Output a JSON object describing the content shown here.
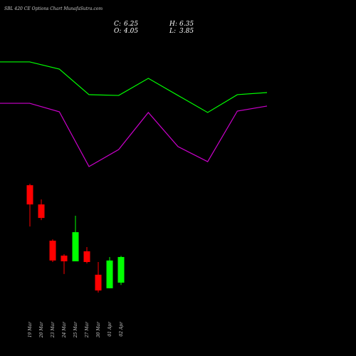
{
  "chart_data": {
    "type": "candlestick",
    "title": "SBL 420 CE Options Chart MunafaSutra.com",
    "summary": [
      {
        "label": "C:",
        "value": 6.25
      },
      {
        "label": "H:",
        "value": 6.35
      },
      {
        "label": "O:",
        "value": 4.05
      },
      {
        "label": "L:",
        "value": 3.85
      }
    ],
    "categories": [
      "19 Mar",
      "20 Mar",
      "23 Mar",
      "24 Mar",
      "25 Mar",
      "27 Mar",
      "30 Mar",
      "01 Apr",
      "02 Apr"
    ],
    "open": [
      12.41,
      10.76,
      7.65,
      6.37,
      5.88,
      6.74,
      4.73,
      3.57,
      4.05
    ],
    "high": [
      12.53,
      11.19,
      7.77,
      6.49,
      9.79,
      7.1,
      5.82,
      6.25,
      6.35
    ],
    "low": [
      8.87,
      9.42,
      5.82,
      4.79,
      5.88,
      5.7,
      3.2,
      3.57,
      3.85
    ],
    "close": [
      10.76,
      9.6,
      5.95,
      5.88,
      8.38,
      5.82,
      3.38,
      5.95,
      6.25
    ],
    "up_color": "#00ff00",
    "down_color": "#ff0000",
    "ylim": [
      0.2,
      28.3
    ],
    "lines": {
      "x": [
        0,
        1,
        2,
        3,
        4,
        5,
        6,
        7,
        8,
        9
      ],
      "xlim": [
        0,
        12
      ],
      "series": [
        {
          "color": "#00ff00",
          "values": [
            22.99,
            22.99,
            22.37,
            20.18,
            20.11,
            21.58,
            20.11,
            18.65,
            20.18,
            20.36
          ]
        },
        {
          "color": "#cc00cc",
          "values": [
            19.44,
            19.44,
            18.71,
            14.01,
            15.47,
            18.65,
            15.72,
            14.43,
            18.77,
            19.2
          ]
        }
      ]
    }
  }
}
